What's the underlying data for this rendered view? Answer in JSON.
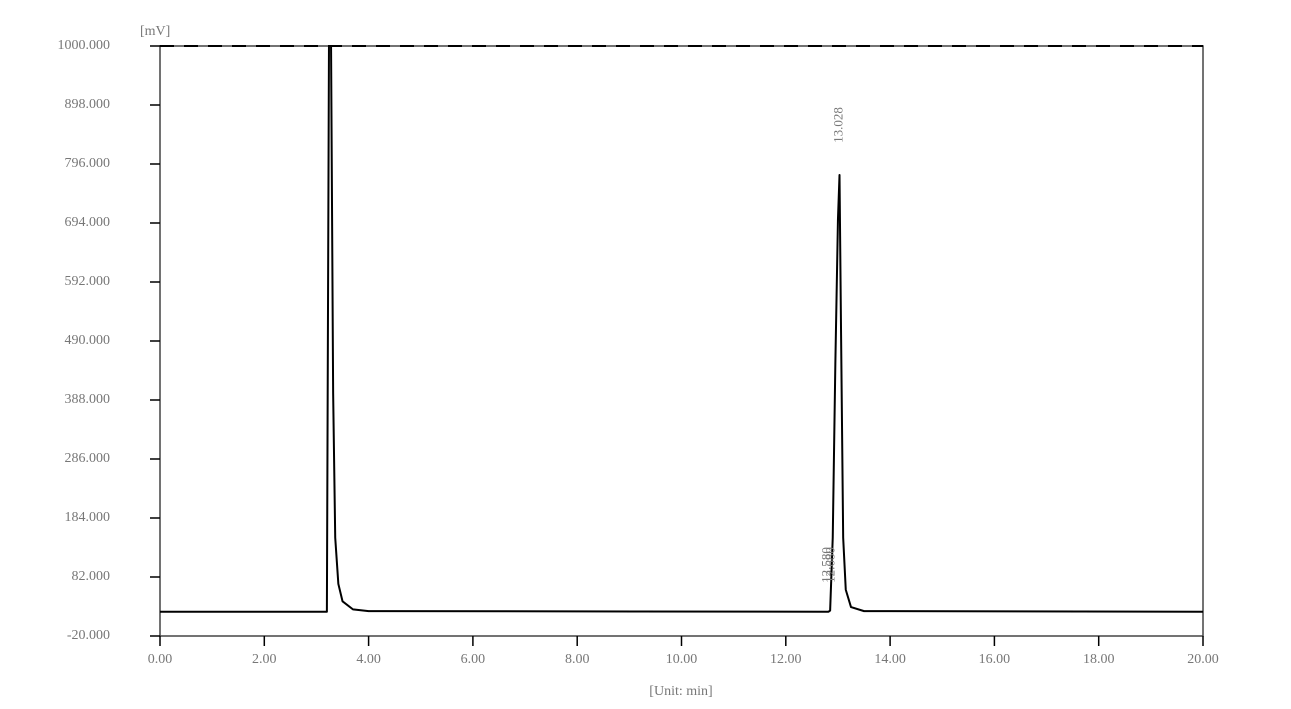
{
  "chart_data": {
    "type": "line",
    "y_label": "[mV]",
    "x_label": "[Unit: min]",
    "x": [
      0,
      3.2,
      3.24,
      3.28,
      3.32,
      3.36,
      3.42,
      3.5,
      3.7,
      4.0,
      12.82,
      12.85,
      12.9,
      12.95,
      13.0,
      13.03,
      13.06,
      13.1,
      13.15,
      13.25,
      13.5,
      20
    ],
    "series": [
      {
        "color": "#000000",
        "values": [
          22,
          22,
          1000,
          1000,
          400,
          150,
          70,
          40,
          26,
          23,
          22,
          24,
          150,
          450,
          700,
          777,
          500,
          150,
          60,
          30,
          23,
          22
        ]
      }
    ],
    "xlim": [
      0,
      20
    ],
    "ylim": [
      -20,
      1000
    ],
    "xticks": [
      {
        "value": 0,
        "label": "0.00"
      },
      {
        "value": 2,
        "label": "2.00"
      },
      {
        "value": 4,
        "label": "4.00"
      },
      {
        "value": 6,
        "label": "6.00"
      },
      {
        "value": 8,
        "label": "8.00"
      },
      {
        "value": 10,
        "label": "10.00"
      },
      {
        "value": 12,
        "label": "12.00"
      },
      {
        "value": 14,
        "label": "14.00"
      },
      {
        "value": 16,
        "label": "16.00"
      },
      {
        "value": 18,
        "label": "18.00"
      },
      {
        "value": 20,
        "label": "20.00"
      }
    ],
    "yticks": [
      {
        "value": -20,
        "label": "-20.000"
      },
      {
        "value": 82,
        "label": "82.000"
      },
      {
        "value": 184,
        "label": "184.000"
      },
      {
        "value": 286,
        "label": "286.000"
      },
      {
        "value": 388,
        "label": "388.000"
      },
      {
        "value": 490,
        "label": "490.000"
      },
      {
        "value": 592,
        "label": "592.000"
      },
      {
        "value": 694,
        "label": "694.000"
      },
      {
        "value": 796,
        "label": "796.000"
      },
      {
        "value": 898,
        "label": "898.000"
      },
      {
        "value": 1000,
        "label": "1000.000"
      }
    ],
    "annotations": [
      {
        "text": "13.028",
        "x": 13.028
      },
      {
        "text": "12.580",
        "x": 12.8
      },
      {
        "text": "12.680",
        "x": 12.88
      }
    ]
  }
}
